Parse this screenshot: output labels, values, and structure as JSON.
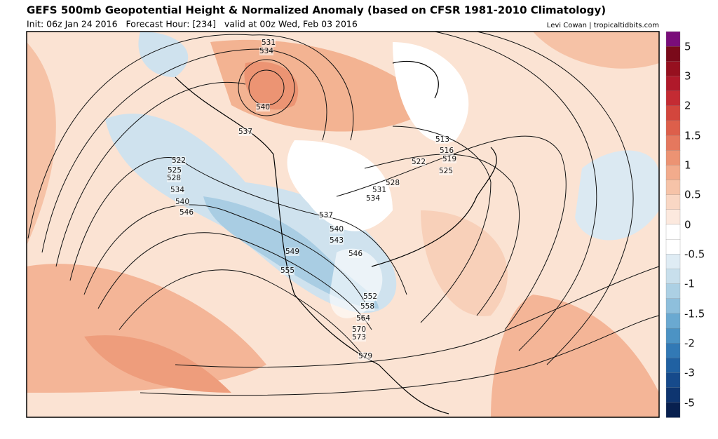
{
  "header": {
    "title": "GEFS 500mb Geopotential Height & Normalized Anomaly (based on CFSR 1981-2010 Climatology)",
    "subtitle": "Init: 06z Jan 24 2016   Forecast Hour: [234]   valid at 00z Wed, Feb 03 2016",
    "credit": "Levi Cowan | tropicaltidbits.com"
  },
  "colorbar": {
    "labels": [
      "5",
      "3",
      "2",
      "1.5",
      "1",
      "0.5",
      "0",
      "-0.5",
      "-1",
      "-1.5",
      "-2",
      "-3",
      "-5"
    ]
  },
  "contours": [
    "531",
    "534",
    "540",
    "537",
    "522",
    "525",
    "528",
    "534",
    "540",
    "546",
    "537",
    "540",
    "543",
    "549",
    "546",
    "555",
    "552",
    "558",
    "564",
    "570",
    "573",
    "579",
    "513",
    "516",
    "519",
    "522",
    "525",
    "528",
    "531",
    "534"
  ]
}
